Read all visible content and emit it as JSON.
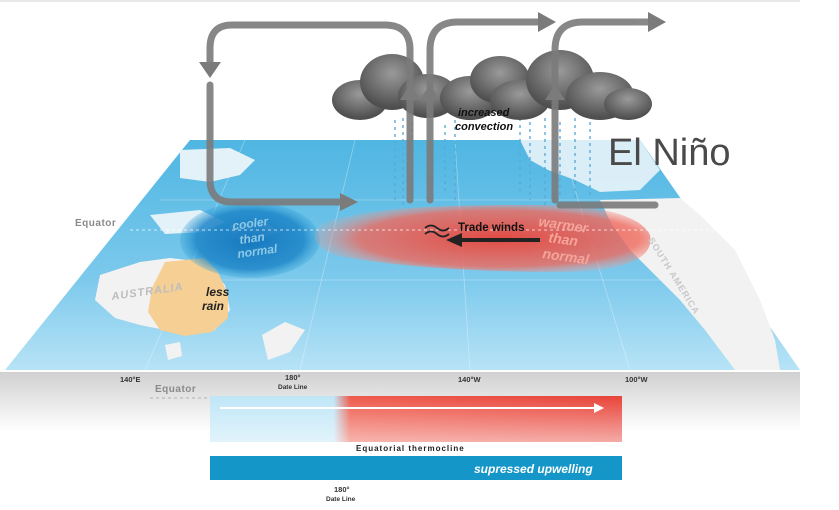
{
  "title": "El Niño",
  "labels": {
    "increased_convection_line1": "increased",
    "increased_convection_line2": "convection",
    "trade_winds": "Trade winds",
    "cooler_line1": "cooler",
    "cooler_line2": "than",
    "cooler_line3": "normal",
    "warmer_line1": "warmer",
    "warmer_line2": "than",
    "warmer_line3": "normal",
    "less_rain_line1": "less",
    "less_rain_line2": "rain",
    "australia": "AUSTRALIA",
    "south_america": "SOUTH AMERICA",
    "equator_top": "Equator",
    "equator_bottom": "Equator",
    "lon_140e": "140°E",
    "lon_180": "180°",
    "date_line": "Date Line",
    "lon_140w": "140°W",
    "lon_100w": "100°W",
    "thermocline": "Equatorial thermocline",
    "upwelling": "supressed upwelling",
    "lon_180_bottom": "180°",
    "date_line_bottom": "Date Line"
  },
  "colors": {
    "ocean": "#35a7d8",
    "ocean_light": "#9ed7f1",
    "warm": "#e8443a",
    "cool": "#1e86c8",
    "australia": "#f6cf94",
    "arrow": "#7b7b7b",
    "upwelling_bar": "#1496c8"
  }
}
